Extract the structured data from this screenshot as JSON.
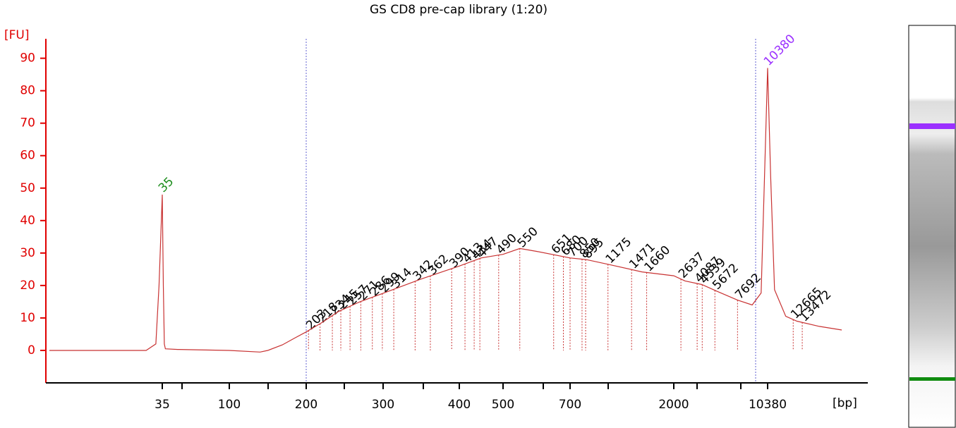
{
  "chart_data": {
    "type": "line",
    "title": "GS CD8 pre-cap library (1:20)",
    "y_label": "[FU]",
    "x_label": "[bp]",
    "ylim": [
      -10,
      96
    ],
    "yticks": [
      0,
      10,
      20,
      30,
      40,
      50,
      60,
      70,
      80,
      90
    ],
    "xticks": [
      35,
      100,
      200,
      300,
      400,
      500,
      700,
      2000,
      10380
    ],
    "region_lines": [
      200,
      9309
    ],
    "series": [
      {
        "name": "GS CD8 pre-cap library (1:20)",
        "color": "#c83232",
        "x": [
          0,
          20,
          30,
          33,
          34,
          35,
          36,
          37,
          38,
          50,
          100,
          140,
          150,
          169,
          185,
          200,
          220,
          242,
          270,
          300,
          350,
          400,
          450,
          500,
          550,
          600,
          700,
          900,
          1200,
          1600,
          2000,
          3000,
          4500,
          6000,
          7692,
          9000,
          9800,
          10100,
          10380,
          10650,
          11000,
          12000,
          13000,
          15000,
          17000
        ],
        "values": [
          0,
          0,
          0,
          2,
          20,
          48,
          20,
          2,
          0.5,
          0.3,
          0,
          -0.5,
          0,
          1.7,
          3.8,
          5.7,
          8.5,
          12,
          15,
          17.6,
          22,
          26,
          28.5,
          29.6,
          31.4,
          30.5,
          28.5,
          28,
          26.4,
          24.2,
          23,
          21.4,
          20.3,
          18,
          15.5,
          14,
          17.7,
          53.6,
          87,
          53.6,
          18.7,
          10.5,
          9,
          7.4,
          6.3
        ]
      }
    ],
    "marker_peaks": {
      "values": [
        35,
        10380
      ],
      "colors": [
        "#1a8c1a",
        "#9b30ff"
      ]
    },
    "peaks": [
      203,
      218,
      234,
      245,
      257,
      271,
      286,
      299,
      314,
      342,
      362,
      390,
      413,
      434,
      447,
      490,
      550,
      651,
      680,
      700,
      850,
      895,
      1175,
      1471,
      1660,
      2637,
      4087,
      4539,
      5672,
      7692,
      12665,
      13472
    ]
  }
}
